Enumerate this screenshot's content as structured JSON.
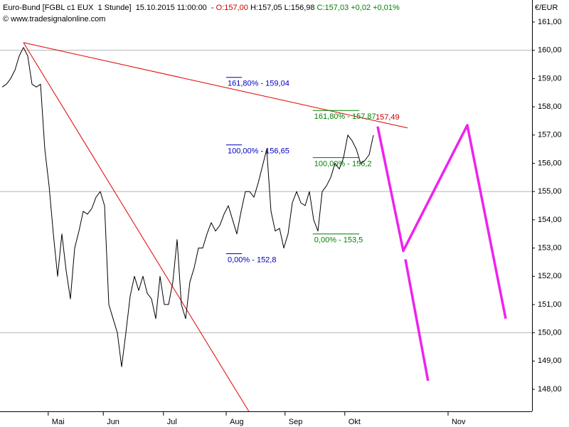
{
  "header": {
    "parts": [
      {
        "text": "Euro-Bund [FGBL c1 EUX  1 Stunde]  15.10.2015 11:00:00  - ",
        "color": "#000000"
      },
      {
        "text": "O:157,00",
        "color": "#d00000"
      },
      {
        "text": " H:157,05 L:156,98 ",
        "color": "#000000"
      },
      {
        "text": "C:157,03 +0,02 +0,01%",
        "color": "#008000"
      }
    ],
    "source": "© www.tradesignalonline.com",
    "unit": "€/EUR"
  },
  "chart_data": {
    "type": "line",
    "xlim": [
      -0.5,
      124.17
    ],
    "xticks": [
      {
        "value": 10.8,
        "label": "Mai"
      },
      {
        "value": 23.7,
        "label": "Jun"
      },
      {
        "value": 37.8,
        "label": "Jul"
      },
      {
        "value": 52.5,
        "label": "Aug"
      },
      {
        "value": 66.3,
        "label": "Sep"
      },
      {
        "value": 80.3,
        "label": "Okt"
      },
      {
        "value": 104.5,
        "label": "Nov"
      }
    ],
    "ylim": [
      147.22,
      161.78
    ],
    "yticks": [
      {
        "value": 148,
        "label": "148,00"
      },
      {
        "value": 149,
        "label": "149,00"
      },
      {
        "value": 150,
        "label": "150,00"
      },
      {
        "value": 151,
        "label": "151,00"
      },
      {
        "value": 152,
        "label": "152,00"
      },
      {
        "value": 153,
        "label": "153,00"
      },
      {
        "value": 154,
        "label": "154,00"
      },
      {
        "value": 155,
        "label": "155,00"
      },
      {
        "value": 156,
        "label": "156,00"
      },
      {
        "value": 157,
        "label": "157,00"
      },
      {
        "value": 158,
        "label": "158,00"
      },
      {
        "value": 159,
        "label": "159,00"
      },
      {
        "value": 160,
        "label": "160,00"
      },
      {
        "value": 161,
        "label": "161,00"
      }
    ],
    "gridlines": [
      150,
      155,
      160
    ],
    "series": [
      {
        "color": "#000000",
        "width": 1,
        "x": [
          0,
          1,
          2,
          3,
          4,
          5,
          6,
          7,
          8,
          9,
          10,
          11,
          12,
          13,
          14,
          15,
          16,
          17,
          18,
          19,
          20,
          21,
          22,
          23,
          24,
          25,
          26,
          27,
          28,
          29,
          30,
          31,
          32,
          33,
          34,
          35,
          36,
          37,
          38,
          39,
          40,
          41,
          42,
          43,
          44,
          45,
          46,
          47,
          48,
          49,
          50,
          51,
          52,
          53,
          54,
          55,
          56,
          57,
          58,
          59,
          60,
          61,
          62,
          63,
          64,
          65,
          66,
          67,
          68,
          69,
          70,
          71,
          72,
          73,
          74,
          75,
          76,
          77,
          78,
          79,
          80,
          81,
          82,
          83,
          84,
          85,
          86,
          87
        ],
        "values": [
          158.7,
          158.8,
          159.0,
          159.3,
          159.8,
          160.1,
          159.8,
          158.8,
          158.7,
          158.8,
          156.5,
          155.2,
          153.5,
          152.0,
          153.5,
          152.2,
          151.2,
          153.0,
          153.6,
          154.3,
          154.2,
          154.4,
          154.8,
          155.0,
          154.5,
          151.0,
          150.5,
          150.0,
          148.8,
          150.0,
          151.3,
          152.0,
          151.5,
          152.0,
          151.4,
          151.2,
          150.5,
          152.0,
          151.0,
          151.0,
          151.8,
          153.3,
          151.0,
          150.5,
          151.8,
          152.3,
          153.0,
          153.0,
          153.5,
          153.9,
          153.6,
          153.8,
          154.2,
          154.5,
          154.0,
          153.5,
          154.3,
          155.0,
          155.0,
          154.8,
          155.3,
          155.9,
          156.5,
          154.3,
          153.6,
          153.7,
          153.0,
          153.5,
          154.6,
          155.0,
          154.6,
          154.5,
          155.0,
          154.0,
          153.6,
          155.0,
          155.2,
          155.5,
          156.0,
          155.8,
          156.2,
          157.0,
          156.8,
          156.5,
          156.0,
          156.1,
          156.3,
          157.0
        ]
      },
      {
        "color": "#ee22ee",
        "width": 3.5,
        "x": [
          88,
          94,
          109,
          118
        ],
        "values": [
          157.3,
          152.9,
          157.35,
          150.5
        ]
      },
      {
        "color": "#ee22ee",
        "width": 3.5,
        "x": [
          94.5,
          99.8
        ],
        "values": [
          152.6,
          148.3
        ]
      }
    ],
    "trendlines": [
      {
        "color": "#e00000",
        "x": [
          5,
          95
        ],
        "values": [
          160.27,
          157.25
        ]
      },
      {
        "color": "#e00000",
        "x": [
          5,
          57.8
        ],
        "values": [
          160.27,
          147.22
        ]
      }
    ],
    "annotations": [
      {
        "text": "157,49",
        "x": 87.5,
        "value": 157.49,
        "color": "#c00000"
      }
    ],
    "fibonacci": [
      {
        "color": "#0000c0",
        "x": [
          52.5,
          56.2
        ],
        "levels": [
          {
            "value": 159.04,
            "label": "161,80% - 159,04"
          },
          {
            "value": 156.65,
            "label": "100,00% - 156,65"
          },
          {
            "value": 152.8,
            "label": "0,00% - 152,8"
          }
        ]
      },
      {
        "color": "#008000",
        "x": [
          72.8,
          83.7
        ],
        "levels": [
          {
            "value": 157.87,
            "label": "161,80% - 157,87"
          },
          {
            "value": 156.2,
            "label": "100,00% - 156,2"
          },
          {
            "value": 153.5,
            "label": "0,00% - 153,5"
          }
        ]
      }
    ]
  }
}
